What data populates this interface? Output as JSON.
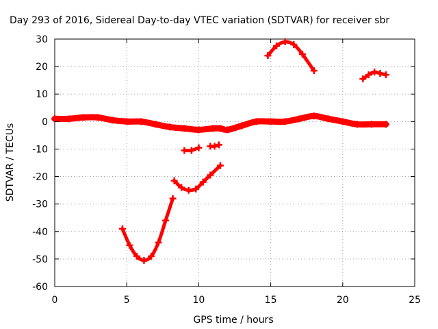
{
  "chart_data": {
    "type": "scatter",
    "title": "Day 293 of 2016, Sidereal Day-to-day VTEC variation (SDTVAR) for receiver sbr",
    "xlabel": "GPS time / hours",
    "ylabel": "SDTVAR / TECUs",
    "xlim": [
      0,
      25
    ],
    "ylim": [
      -60,
      30
    ],
    "xticks": [
      0,
      5,
      10,
      15,
      20,
      25
    ],
    "yticks": [
      30,
      20,
      10,
      0,
      -10,
      -20,
      -30,
      -40,
      -50,
      -60
    ],
    "grid": true,
    "marker_color": "#ff0000",
    "series": [
      {
        "name": "main-trace",
        "x": [
          0,
          1,
          2,
          3,
          4,
          5,
          6,
          7,
          8,
          9,
          10,
          11,
          11.5,
          12,
          13,
          14,
          15,
          16,
          17,
          18,
          19,
          20,
          21,
          22,
          23
        ],
        "y": [
          1,
          1,
          1.5,
          1.5,
          0.5,
          0,
          0,
          -1,
          -2,
          -2.5,
          -3,
          -2.5,
          -2.5,
          -3,
          -1.5,
          0,
          0,
          0,
          1,
          2,
          1,
          0,
          -1,
          -1,
          -1
        ]
      },
      {
        "name": "pass-5-6h",
        "x": [
          4.7,
          5.2,
          5.7,
          6.2,
          6.7,
          7.2,
          7.7,
          8.2
        ],
        "y": [
          -39,
          -45,
          -49,
          -50.5,
          -49,
          -44,
          -36,
          -28
        ]
      },
      {
        "name": "pass-8-11h",
        "x": [
          8.3,
          8.8,
          9.3,
          9.8,
          10.3,
          10.8,
          11.5
        ],
        "y": [
          -21.5,
          -24,
          -25,
          -24.5,
          -22,
          -19.5,
          -16
        ]
      },
      {
        "name": "pass-9-10h",
        "x": [
          9,
          9.5,
          10
        ],
        "y": [
          -10.5,
          -10.5,
          -9.5
        ]
      },
      {
        "name": "pass-11h",
        "x": [
          10.8,
          11.1,
          11.4
        ],
        "y": [
          -9,
          -9,
          -8.5
        ]
      },
      {
        "name": "pass-15-18h",
        "x": [
          14.8,
          15.4,
          16,
          16.6,
          17.2,
          18
        ],
        "y": [
          24,
          27.5,
          29,
          28,
          24.5,
          18.5
        ]
      },
      {
        "name": "pass-21-23h",
        "x": [
          21.4,
          21.8,
          22.2,
          22.6,
          23
        ],
        "y": [
          15.5,
          17,
          18,
          17.5,
          17
        ]
      }
    ]
  }
}
